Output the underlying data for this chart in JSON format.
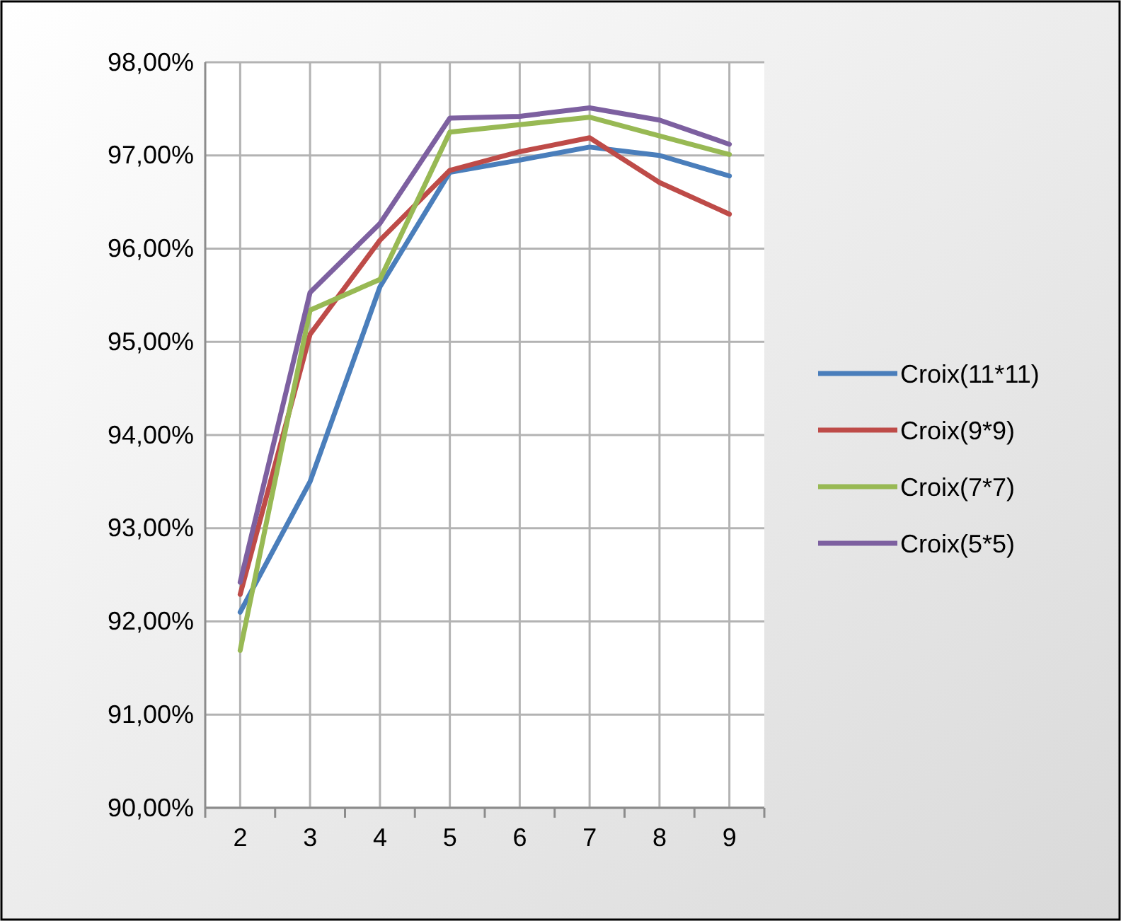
{
  "chart_data": {
    "type": "line",
    "categories": [
      "2",
      "3",
      "4",
      "5",
      "6",
      "7",
      "8",
      "9"
    ],
    "series": [
      {
        "name": "Croix(11*11)",
        "color": "#4a7ebb",
        "values": [
          92.1,
          93.5,
          95.59,
          96.82,
          96.95,
          97.09,
          97.0,
          96.78
        ]
      },
      {
        "name": "Croix(9*9)",
        "color": "#be4b48",
        "values": [
          92.29,
          95.08,
          96.09,
          96.84,
          97.04,
          97.19,
          96.71,
          96.37
        ]
      },
      {
        "name": "Croix(7*7)",
        "color": "#98b954",
        "values": [
          91.69,
          95.34,
          95.67,
          97.25,
          97.33,
          97.41,
          97.21,
          97.01
        ]
      },
      {
        "name": "Croix(5*5)",
        "color": "#7d60a0",
        "values": [
          92.42,
          95.53,
          96.27,
          97.4,
          97.42,
          97.51,
          97.38,
          97.12
        ]
      }
    ],
    "ylim": [
      90,
      98
    ],
    "yticks": [
      {
        "value": 90,
        "label": "90,00%"
      },
      {
        "value": 91,
        "label": "91,00%"
      },
      {
        "value": 92,
        "label": "92,00%"
      },
      {
        "value": 93,
        "label": "93,00%"
      },
      {
        "value": 94,
        "label": "94,00%"
      },
      {
        "value": 95,
        "label": "95,00%"
      },
      {
        "value": 96,
        "label": "96,00%"
      },
      {
        "value": 97,
        "label": "97,00%"
      },
      {
        "value": 98,
        "label": "98,00%"
      }
    ],
    "grid": true,
    "legend": "right",
    "marker": "none",
    "line_style": "solid"
  }
}
